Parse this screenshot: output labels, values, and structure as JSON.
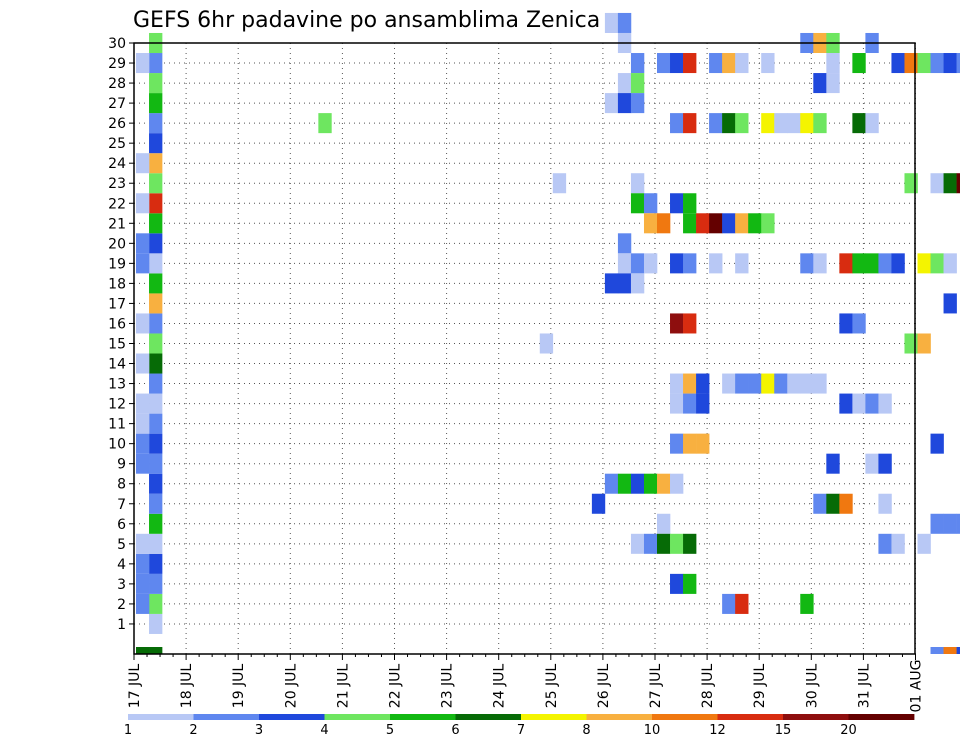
{
  "chart_data": {
    "type": "heatmap",
    "title": "GEFS 6hr padavine po ansamblima Zenica",
    "x_labels": [
      "17 JUL",
      "18 JUL",
      "19 JUL",
      "20 JUL",
      "21 JUL",
      "22 JUL",
      "23 JUL",
      "24 JUL",
      "25 JUL",
      "26 JUL",
      "27 JUL",
      "28 JUL",
      "29 JUL",
      "30 JUL",
      "31 JUL",
      "01 AUG"
    ],
    "y_labels": [
      "1",
      "2",
      "3",
      "4",
      "5",
      "6",
      "7",
      "8",
      "9",
      "10",
      "11",
      "12",
      "13",
      "14",
      "15",
      "16",
      "17",
      "18",
      "19",
      "20",
      "21",
      "22",
      "23",
      "24",
      "25",
      "26",
      "27",
      "28",
      "29",
      "30"
    ],
    "x_unit_steps_per_day": 4,
    "y_range": [
      0,
      30
    ],
    "grid": true,
    "colorbar": {
      "labels": [
        "1",
        "2",
        "3",
        "4",
        "5",
        "6",
        "7",
        "8",
        "10",
        "12",
        "15",
        "20"
      ],
      "colors": [
        "#b8c8f5",
        "#5f87ef",
        "#1f48dc",
        "#6ee660",
        "#12b812",
        "#066b06",
        "#f4f400",
        "#f8b040",
        "#f07810",
        "#d82c10",
        "#8e0e0e",
        "#640000"
      ]
    },
    "cells": [
      [
        1,
        0,
        0
      ],
      [
        1,
        1,
        3
      ],
      [
        1,
        2,
        1
      ],
      [
        1,
        3,
        2
      ],
      [
        1,
        4,
        0
      ],
      [
        1,
        5,
        4
      ],
      [
        1,
        6,
        1
      ],
      [
        1,
        7,
        2
      ],
      [
        1,
        8,
        1
      ],
      [
        1,
        9,
        2
      ],
      [
        1,
        10,
        1
      ],
      [
        1,
        11,
        0
      ],
      [
        1,
        12,
        1
      ],
      [
        1,
        13,
        5
      ],
      [
        1,
        14,
        3
      ],
      [
        1,
        15,
        1
      ],
      [
        1,
        16,
        7
      ],
      [
        1,
        17,
        4
      ],
      [
        1,
        18,
        0
      ],
      [
        1,
        19,
        2
      ],
      [
        1,
        20,
        4
      ],
      [
        1,
        21,
        9
      ],
      [
        1,
        22,
        3
      ],
      [
        1,
        23,
        7
      ],
      [
        1,
        24,
        2
      ],
      [
        1,
        25,
        1
      ],
      [
        1,
        26,
        4
      ],
      [
        1,
        27,
        3
      ],
      [
        1,
        28,
        1
      ],
      [
        1,
        29,
        3
      ],
      [
        0,
        1,
        1
      ],
      [
        0,
        2,
        1
      ],
      [
        0,
        3,
        1
      ],
      [
        0,
        4,
        0
      ],
      [
        0,
        8,
        1
      ],
      [
        0,
        9,
        1
      ],
      [
        0,
        10,
        0
      ],
      [
        0,
        11,
        0
      ],
      [
        0,
        13,
        0
      ],
      [
        0,
        15,
        0
      ],
      [
        0,
        18,
        1
      ],
      [
        0,
        19,
        1
      ],
      [
        0,
        21,
        0
      ],
      [
        0,
        23,
        0
      ],
      [
        0,
        28,
        0
      ],
      [
        0,
        -1,
        5
      ],
      [
        1,
        -1,
        5
      ],
      [
        36,
        30,
        0
      ],
      [
        37,
        30,
        1
      ],
      [
        51,
        29,
        1
      ],
      [
        52,
        29,
        7
      ],
      [
        53,
        29,
        3
      ],
      [
        56,
        29,
        1
      ],
      [
        37,
        29,
        0
      ],
      [
        38,
        28,
        1
      ],
      [
        40,
        28,
        1
      ],
      [
        41,
        28,
        2
      ],
      [
        42,
        28,
        9
      ],
      [
        44,
        28,
        1
      ],
      [
        45,
        28,
        7
      ],
      [
        46,
        28,
        0
      ],
      [
        48,
        28,
        0
      ],
      [
        53,
        28,
        0
      ],
      [
        55,
        28,
        4
      ],
      [
        58,
        28,
        2
      ],
      [
        59,
        28,
        8
      ],
      [
        60,
        28,
        3
      ],
      [
        61,
        28,
        1
      ],
      [
        62,
        28,
        2
      ],
      [
        63,
        28,
        1
      ],
      [
        37,
        27,
        0
      ],
      [
        38,
        27,
        3
      ],
      [
        52,
        27,
        2
      ],
      [
        53,
        27,
        0
      ],
      [
        36,
        26,
        0
      ],
      [
        37,
        26,
        2
      ],
      [
        38,
        26,
        1
      ],
      [
        14,
        25,
        3
      ],
      [
        41,
        25,
        1
      ],
      [
        42,
        25,
        9
      ],
      [
        44,
        25,
        1
      ],
      [
        45,
        25,
        5
      ],
      [
        46,
        25,
        3
      ],
      [
        48,
        25,
        6
      ],
      [
        49,
        25,
        0
      ],
      [
        50,
        25,
        0
      ],
      [
        51,
        25,
        6
      ],
      [
        52,
        25,
        3
      ],
      [
        55,
        25,
        5
      ],
      [
        56,
        25,
        0
      ],
      [
        32,
        22,
        0
      ],
      [
        38,
        22,
        0
      ],
      [
        59,
        22,
        3
      ],
      [
        61,
        22,
        0
      ],
      [
        62,
        22,
        5
      ],
      [
        63,
        22,
        11
      ],
      [
        38,
        21,
        4
      ],
      [
        39,
        21,
        1
      ],
      [
        41,
        21,
        2
      ],
      [
        42,
        21,
        4
      ],
      [
        39,
        20,
        7
      ],
      [
        40,
        20,
        8
      ],
      [
        42,
        20,
        4
      ],
      [
        43,
        20,
        9
      ],
      [
        44,
        20,
        11
      ],
      [
        45,
        20,
        2
      ],
      [
        46,
        20,
        7
      ],
      [
        47,
        20,
        4
      ],
      [
        48,
        20,
        3
      ],
      [
        37,
        19,
        1
      ],
      [
        37,
        18,
        0
      ],
      [
        38,
        18,
        1
      ],
      [
        39,
        18,
        0
      ],
      [
        41,
        18,
        2
      ],
      [
        42,
        18,
        1
      ],
      [
        44,
        18,
        0
      ],
      [
        46,
        18,
        0
      ],
      [
        51,
        18,
        1
      ],
      [
        52,
        18,
        0
      ],
      [
        54,
        18,
        9
      ],
      [
        55,
        18,
        4
      ],
      [
        56,
        18,
        4
      ],
      [
        57,
        18,
        1
      ],
      [
        58,
        18,
        2
      ],
      [
        60,
        18,
        6
      ],
      [
        61,
        18,
        3
      ],
      [
        62,
        18,
        0
      ],
      [
        36,
        17,
        2
      ],
      [
        37,
        17,
        2
      ],
      [
        38,
        17,
        0
      ],
      [
        62,
        16,
        2
      ],
      [
        64,
        16,
        0
      ],
      [
        41,
        15,
        10
      ],
      [
        42,
        15,
        9
      ],
      [
        54,
        15,
        2
      ],
      [
        55,
        15,
        1
      ],
      [
        31,
        14,
        0
      ],
      [
        59,
        14,
        3
      ],
      [
        60,
        14,
        7
      ],
      [
        41,
        12,
        0
      ],
      [
        42,
        12,
        7
      ],
      [
        43,
        12,
        2
      ],
      [
        45,
        12,
        0
      ],
      [
        46,
        12,
        1
      ],
      [
        47,
        12,
        1
      ],
      [
        48,
        12,
        6
      ],
      [
        49,
        12,
        1
      ],
      [
        50,
        12,
        0
      ],
      [
        51,
        12,
        0
      ],
      [
        52,
        12,
        0
      ],
      [
        41,
        11,
        0
      ],
      [
        42,
        11,
        1
      ],
      [
        43,
        11,
        2
      ],
      [
        54,
        11,
        2
      ],
      [
        55,
        11,
        0
      ],
      [
        56,
        11,
        1
      ],
      [
        57,
        11,
        0
      ],
      [
        66,
        11,
        2
      ],
      [
        41,
        9,
        1
      ],
      [
        42,
        9,
        7
      ],
      [
        43,
        9,
        7
      ],
      [
        61,
        9,
        2
      ],
      [
        64,
        9,
        0
      ],
      [
        53,
        8,
        2
      ],
      [
        56,
        8,
        0
      ],
      [
        57,
        8,
        2
      ],
      [
        64,
        8,
        0
      ],
      [
        36,
        7,
        1
      ],
      [
        37,
        7,
        4
      ],
      [
        38,
        7,
        2
      ],
      [
        39,
        7,
        4
      ],
      [
        40,
        7,
        7
      ],
      [
        41,
        7,
        0
      ],
      [
        35,
        6,
        2
      ],
      [
        52,
        6,
        1
      ],
      [
        53,
        6,
        5
      ],
      [
        54,
        6,
        8
      ],
      [
        57,
        6,
        0
      ],
      [
        40,
        5,
        0
      ],
      [
        61,
        5,
        1
      ],
      [
        62,
        5,
        1
      ],
      [
        63,
        5,
        1
      ],
      [
        38,
        4,
        0
      ],
      [
        39,
        4,
        1
      ],
      [
        40,
        4,
        5
      ],
      [
        41,
        4,
        3
      ],
      [
        42,
        4,
        5
      ],
      [
        57,
        4,
        1
      ],
      [
        58,
        4,
        0
      ],
      [
        60,
        4,
        0
      ],
      [
        41,
        2,
        2
      ],
      [
        42,
        2,
        4
      ],
      [
        45,
        1,
        1
      ],
      [
        46,
        1,
        9
      ],
      [
        51,
        1,
        4
      ],
      [
        61,
        -1,
        1
      ],
      [
        62,
        -1,
        8
      ],
      [
        63,
        -1,
        2
      ],
      [
        64,
        -1,
        1
      ],
      [
        65,
        -1,
        3
      ]
    ]
  }
}
